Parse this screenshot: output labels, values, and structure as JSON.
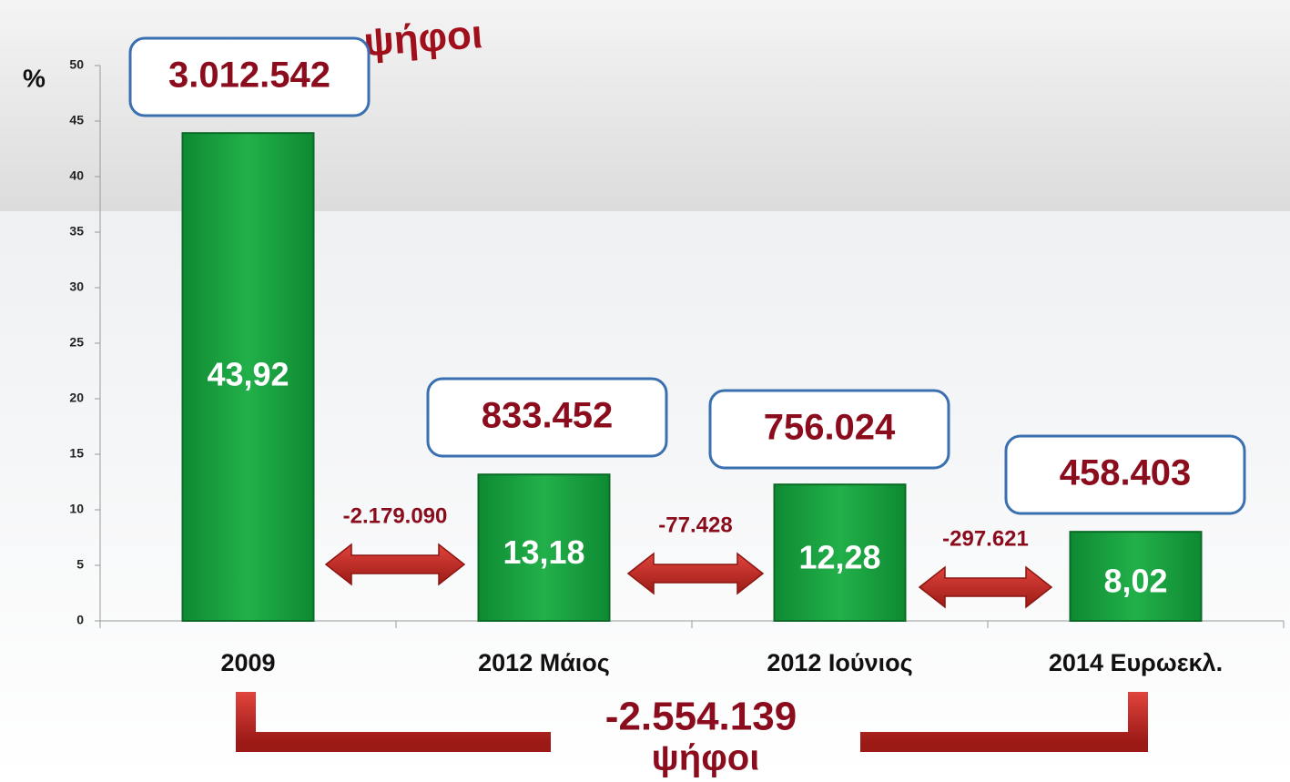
{
  "chart_data": {
    "type": "bar",
    "y_label": "%",
    "categories": [
      "2009",
      "2012 Μάιος",
      "2012 Ιούνιος",
      "2014 Ευρωεκλ."
    ],
    "values": [
      43.92,
      13.18,
      12.28,
      8.02
    ],
    "value_labels": [
      "43,92",
      "13,18",
      "12,28",
      "8,02"
    ],
    "color": "#1aa340",
    "ylim": [
      0,
      50
    ],
    "yticks": [
      0,
      5,
      10,
      15,
      20,
      25,
      30,
      35,
      40,
      45,
      50
    ],
    "votes": [
      "3.012.542",
      "833.452",
      "756.024",
      "458.403"
    ],
    "differences": [
      "-2.179.090",
      "-77.428",
      "-297.621"
    ],
    "total_difference": "-2.554.139",
    "unit_label": "ψήφοι"
  }
}
